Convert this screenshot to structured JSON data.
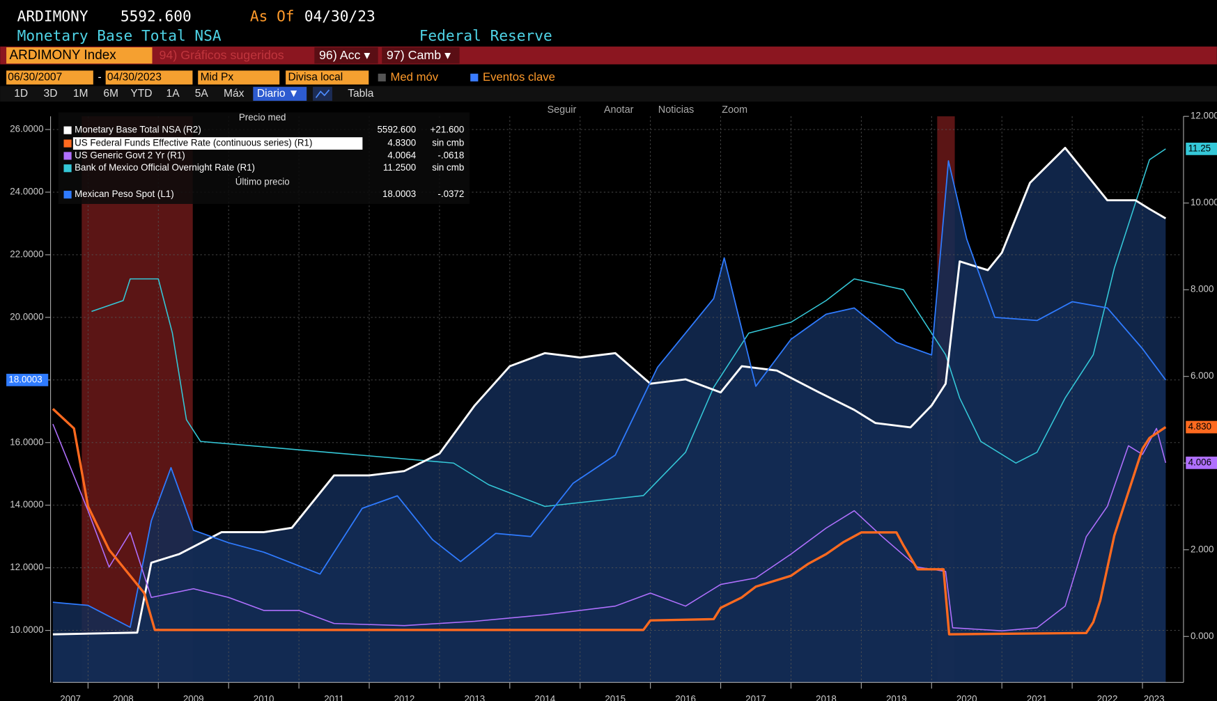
{
  "ui": {
    "ticker": "ARDIMONY",
    "price": "5592.600",
    "as_of": "As Of",
    "as_of_date": "04/30/23",
    "security": "Monetary Base Total NSA",
    "source": "Federal Reserve",
    "index": "ARDIMONY Index",
    "suggested": "94) Gráficos sugeridos",
    "acc": "96) Acc ▾",
    "camb": "97) Camb ▾",
    "start_date": "06/30/2007",
    "dash": "-",
    "end_date": "04/30/2023",
    "px": "Mid Px",
    "currency": "Divisa local",
    "mov": "Med móv",
    "events": "Eventos clave",
    "periods": [
      "1D",
      "3D",
      "1M",
      "6M",
      "YTD",
      "1A",
      "5A",
      "Máx"
    ],
    "freq": "Diario ▼",
    "table": "Tabla",
    "tools": [
      "Seguir",
      "Anotar",
      "Noticias",
      "Zoom"
    ],
    "legend_head": "Precio med",
    "legend_last_head": "Último precio"
  },
  "chart_data": {
    "type": "line",
    "xlim": [
      2007.5,
      2023.33
    ],
    "xticks": [
      {
        "value": 2007,
        "label": "2007"
      },
      {
        "value": 2008,
        "label": "2008"
      },
      {
        "value": 2009,
        "label": "2009"
      },
      {
        "value": 2010,
        "label": "2010"
      },
      {
        "value": 2011,
        "label": "2011"
      },
      {
        "value": 2012,
        "label": "2012"
      },
      {
        "value": 2013,
        "label": "2013"
      },
      {
        "value": 2014,
        "label": "2014"
      },
      {
        "value": 2015,
        "label": "2015"
      },
      {
        "value": 2016,
        "label": "2016"
      },
      {
        "value": 2017,
        "label": "2017"
      },
      {
        "value": 2018,
        "label": "2018"
      },
      {
        "value": 2019,
        "label": "2019"
      },
      {
        "value": 2020,
        "label": "2020"
      },
      {
        "value": 2021,
        "label": "2021"
      },
      {
        "value": 2022,
        "label": "2022"
      },
      {
        "value": 2023,
        "label": "2023"
      }
    ],
    "ylim": [
      8.34,
      26.67
    ],
    "yticks": [
      {
        "value": 10,
        "label": "10.0000"
      },
      {
        "value": 12,
        "label": "12.0000"
      },
      {
        "value": 14,
        "label": "14.0000"
      },
      {
        "value": 16,
        "label": "16.0000"
      },
      {
        "value": 18,
        "label": "18.0000"
      },
      {
        "value": 20,
        "label": "20.0000"
      },
      {
        "value": 22,
        "label": "22.0000"
      },
      {
        "value": 24,
        "label": "24.0000"
      },
      {
        "value": 26,
        "label": "26.0000"
      }
    ],
    "y2lim": [
      -1.06,
      12.18
    ],
    "y2ticks": [
      {
        "value": 0,
        "label": "0.000"
      },
      {
        "value": 2,
        "label": "2.000"
      },
      {
        "value": 4,
        "label": "4.000"
      },
      {
        "value": 6,
        "label": "6.000"
      },
      {
        "value": 8,
        "label": "8.000"
      },
      {
        "value": 10,
        "label": "10.000"
      },
      {
        "value": 12,
        "label": "12.000"
      }
    ],
    "y3lim": [
      280,
      6850
    ],
    "grid": true,
    "shaded_ranges": [
      [
        2007.91,
        2009.49
      ],
      [
        2020.08,
        2020.33
      ]
    ],
    "series": [
      {
        "name": "Monetary Base Total NSA  (R2)",
        "color": "#ffffff",
        "axis": "y3",
        "fill": true,
        "width": 2.6,
        "legend_last": "5592.600",
        "legend_change": "+21.600",
        "x": [
          2007.5,
          2008.7,
          2008.9,
          2009.3,
          2009.9,
          2010.5,
          2010.9,
          2011.5,
          2012.0,
          2012.5,
          2013.0,
          2013.5,
          2014.0,
          2014.5,
          2015.0,
          2015.5,
          2016.0,
          2016.5,
          2017.0,
          2017.3,
          2017.8,
          2018.4,
          2018.9,
          2019.2,
          2019.7,
          2020.0,
          2020.2,
          2020.4,
          2020.8,
          2021.0,
          2021.4,
          2021.9,
          2022.5,
          2022.9,
          2023.1,
          2023.33
        ],
        "values": [
          830,
          850,
          1650,
          1750,
          2000,
          2000,
          2050,
          2650,
          2650,
          2700,
          2900,
          3450,
          3900,
          4050,
          4000,
          4050,
          3700,
          3750,
          3600,
          3900,
          3850,
          3600,
          3400,
          3250,
          3200,
          3450,
          3700,
          5100,
          5000,
          5200,
          6000,
          6400,
          5800,
          5800,
          5700,
          5592.6
        ]
      },
      {
        "name": "US Federal Funds Effective Rate (continuous series)  (R1)",
        "color": "#ff6a1f",
        "axis": "y2",
        "width": 3,
        "legend_last": "4.8300",
        "legend_change": "sin cmb",
        "badge": "4.830",
        "x": [
          2007.5,
          2007.8,
          2008.0,
          2008.3,
          2008.8,
          2008.95,
          2015.9,
          2016.0,
          2016.9,
          2017.0,
          2017.3,
          2017.5,
          2018.0,
          2018.25,
          2018.5,
          2018.75,
          2019.0,
          2019.5,
          2019.6,
          2019.8,
          2020.17,
          2020.25,
          2022.2,
          2022.3,
          2022.4,
          2022.5,
          2022.6,
          2022.75,
          2022.9,
          2023.0,
          2023.1,
          2023.33
        ],
        "values": [
          5.25,
          4.8,
          3.0,
          2.0,
          1.0,
          0.15,
          0.15,
          0.37,
          0.4,
          0.66,
          0.9,
          1.15,
          1.4,
          1.68,
          1.9,
          2.18,
          2.4,
          2.4,
          2.1,
          1.55,
          1.55,
          0.05,
          0.08,
          0.33,
          0.83,
          1.58,
          2.33,
          3.08,
          3.83,
          4.33,
          4.58,
          4.83
        ]
      },
      {
        "name": "US Generic Govt 2 Yr  (R1)",
        "color": "#b070ff",
        "axis": "y2",
        "width": 1.4,
        "legend_last": "4.0064",
        "legend_change": "-.0618",
        "badge": "4.006",
        "x": [
          2007.5,
          2008.0,
          2008.3,
          2008.6,
          2008.9,
          2009.5,
          2010.0,
          2010.5,
          2011.0,
          2011.5,
          2012.5,
          2013.5,
          2014.5,
          2015.5,
          2016.0,
          2016.5,
          2017.0,
          2017.5,
          2018.0,
          2018.5,
          2018.9,
          2019.3,
          2019.8,
          2020.2,
          2020.3,
          2021.0,
          2021.5,
          2021.9,
          2022.2,
          2022.5,
          2022.8,
          2023.0,
          2023.2,
          2023.33
        ],
        "values": [
          4.9,
          2.9,
          1.6,
          2.4,
          0.9,
          1.1,
          0.9,
          0.6,
          0.6,
          0.3,
          0.25,
          0.35,
          0.5,
          0.7,
          1.0,
          0.7,
          1.2,
          1.35,
          1.9,
          2.5,
          2.9,
          2.3,
          1.6,
          1.5,
          0.2,
          0.13,
          0.2,
          0.7,
          2.3,
          3.0,
          4.4,
          4.2,
          4.8,
          4.0064
        ]
      },
      {
        "name": "Bank of Mexico Official Overnight Rate  (R1)",
        "color": "#35c8d8",
        "axis": "y2",
        "width": 1.4,
        "legend_last": "11.2500",
        "legend_change": "sin cmb",
        "badge": "11.25",
        "x": [
          2008.05,
          2008.5,
          2008.6,
          2009.0,
          2009.2,
          2009.4,
          2009.6,
          2013.2,
          2013.7,
          2014.5,
          2015.9,
          2016.2,
          2016.5,
          2016.9,
          2017.4,
          2018.0,
          2018.5,
          2018.9,
          2019.6,
          2019.9,
          2020.2,
          2020.4,
          2020.7,
          2021.2,
          2021.5,
          2021.9,
          2022.3,
          2022.6,
          2022.9,
          2023.1,
          2023.33
        ],
        "values": [
          7.5,
          7.75,
          8.25,
          8.25,
          7.0,
          5.0,
          4.5,
          4.0,
          3.5,
          3.0,
          3.25,
          3.75,
          4.25,
          5.75,
          7.0,
          7.25,
          7.75,
          8.25,
          8.0,
          7.25,
          6.5,
          5.5,
          4.5,
          4.0,
          4.25,
          5.5,
          6.5,
          8.5,
          10.0,
          11.0,
          11.25
        ]
      },
      {
        "name": "Mexican Peso Spot  (L1)",
        "color": "#2f7bff",
        "axis": "y",
        "fill": true,
        "width": 1.6,
        "legend_last": "18.0003",
        "legend_change": "-.0372",
        "badge": "18.0003",
        "x": [
          2007.5,
          2008.0,
          2008.6,
          2008.9,
          2009.18,
          2009.5,
          2010.0,
          2010.5,
          2011.3,
          2011.9,
          2012.4,
          2012.9,
          2013.3,
          2013.8,
          2014.3,
          2014.9,
          2015.5,
          2016.1,
          2016.9,
          2017.05,
          2017.5,
          2018.0,
          2018.5,
          2018.9,
          2019.5,
          2020.0,
          2020.24,
          2020.5,
          2020.9,
          2021.5,
          2022.0,
          2022.5,
          2023.0,
          2023.33
        ],
        "values": [
          10.9,
          10.8,
          10.1,
          13.5,
          15.2,
          13.2,
          12.8,
          12.5,
          11.8,
          13.9,
          14.3,
          12.9,
          12.2,
          13.1,
          13.0,
          14.7,
          15.6,
          18.4,
          20.6,
          21.9,
          17.8,
          19.3,
          20.1,
          20.3,
          19.2,
          18.8,
          25.0,
          22.5,
          20.0,
          19.9,
          20.5,
          20.3,
          19.0,
          18.0003
        ]
      }
    ]
  }
}
